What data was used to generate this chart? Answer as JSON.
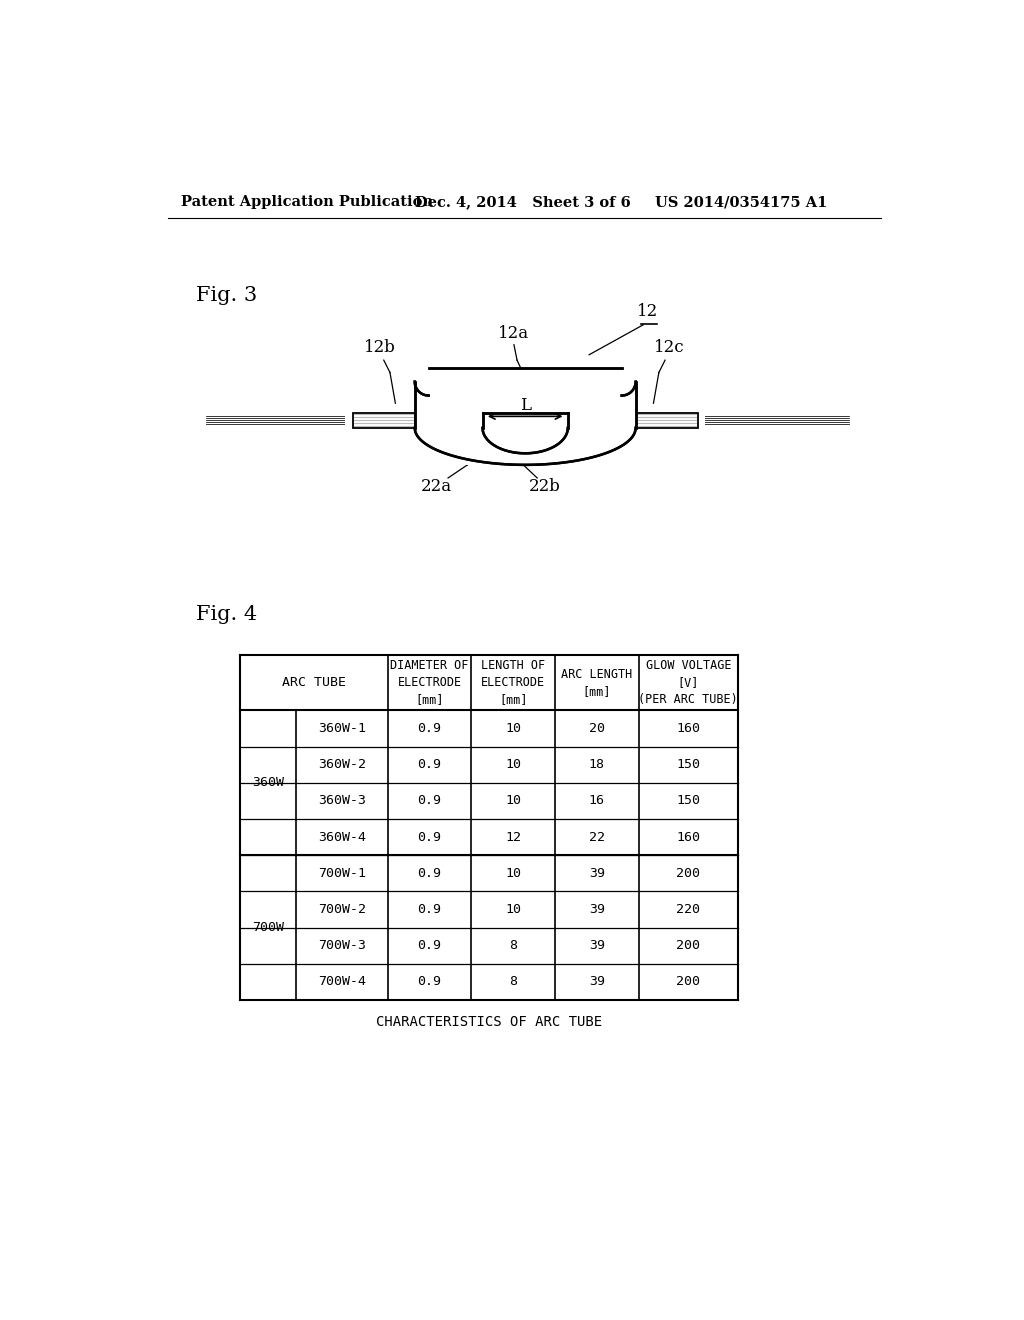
{
  "page_header_left": "Patent Application Publication",
  "page_header_mid": "Dec. 4, 2014   Sheet 3 of 6",
  "page_header_right": "US 2014/0354175 A1",
  "fig3_label": "Fig. 3",
  "fig4_label": "Fig. 4",
  "label_12": "12",
  "label_12a": "12a",
  "label_12b": "12b",
  "label_12c": "12c",
  "label_22a": "22a",
  "label_22b": "22b",
  "label_L": "L",
  "table_caption": "CHARACTERISTICS OF ARC TUBE",
  "table_headers": [
    "ARC TUBE",
    "DIAMETER OF\nELECTRODE\n[mm]",
    "LENGTH OF\nELECTRODE\n[mm]",
    "ARC LENGTH\n[mm]",
    "GLOW VOLTAGE\n[V]\n(PER ARC TUBE)"
  ],
  "table_group1": "360W",
  "table_group2": "700W",
  "table_rows": [
    [
      "360W-1",
      "0.9",
      "10",
      "20",
      "160"
    ],
    [
      "360W-2",
      "0.9",
      "10",
      "18",
      "150"
    ],
    [
      "360W-3",
      "0.9",
      "10",
      "16",
      "150"
    ],
    [
      "360W-4",
      "0.9",
      "12",
      "22",
      "160"
    ],
    [
      "700W-1",
      "0.9",
      "10",
      "39",
      "200"
    ],
    [
      "700W-2",
      "0.9",
      "10",
      "39",
      "220"
    ],
    [
      "700W-3",
      "0.9",
      "8",
      "39",
      "200"
    ],
    [
      "700W-4",
      "0.9",
      "8",
      "39",
      "200"
    ]
  ],
  "bg_color": "#ffffff",
  "line_color": "#000000",
  "text_color": "#000000"
}
